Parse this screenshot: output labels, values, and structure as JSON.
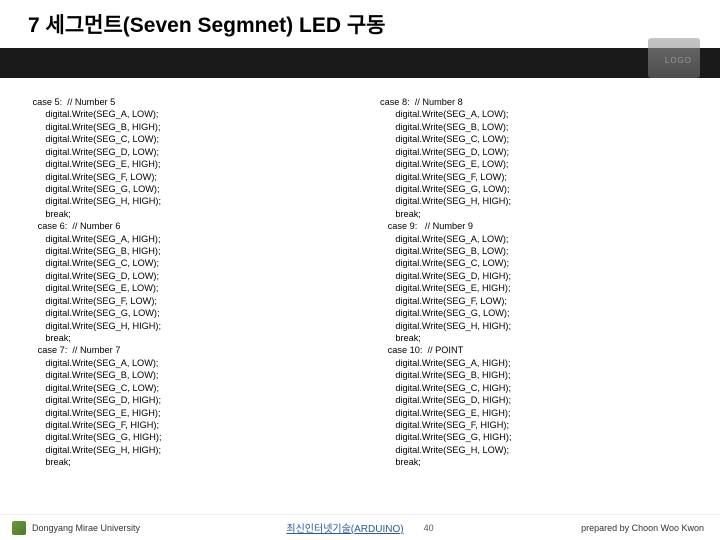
{
  "title": "7 세그먼트(Seven Segmnet) LED 구동",
  "logo_label": "LOGO",
  "code_left": " case 5:  // Number 5\n      digital.Write(SEG_A, LOW);\n      digital.Write(SEG_B, HIGH);\n      digital.Write(SEG_C, LOW);\n      digital.Write(SEG_D, LOW);\n      digital.Write(SEG_E, HIGH);\n      digital.Write(SEG_F, LOW);\n      digital.Write(SEG_G, LOW);\n      digital.Write(SEG_H, HIGH);\n      break;\n   case 6:  // Number 6\n      digital.Write(SEG_A, HIGH);\n      digital.Write(SEG_B, HIGH);\n      digital.Write(SEG_C, LOW);\n      digital.Write(SEG_D, LOW);\n      digital.Write(SEG_E, LOW);\n      digital.Write(SEG_F, LOW);\n      digital.Write(SEG_G, LOW);\n      digital.Write(SEG_H, HIGH);\n      break;\n   case 7:  // Number 7\n      digital.Write(SEG_A, LOW);\n      digital.Write(SEG_B, LOW);\n      digital.Write(SEG_C, LOW);\n      digital.Write(SEG_D, HIGH);\n      digital.Write(SEG_E, HIGH);\n      digital.Write(SEG_F, HIGH);\n      digital.Write(SEG_G, HIGH);\n      digital.Write(SEG_H, HIGH);\n      break;",
  "code_right": "case 8:  // Number 8\n      digital.Write(SEG_A, LOW);\n      digital.Write(SEG_B, LOW);\n      digital.Write(SEG_C, LOW);\n      digital.Write(SEG_D, LOW);\n      digital.Write(SEG_E, LOW);\n      digital.Write(SEG_F, LOW);\n      digital.Write(SEG_G, LOW);\n      digital.Write(SEG_H, HIGH);\n      break;\n   case 9:   // Number 9\n      digital.Write(SEG_A, LOW);\n      digital.Write(SEG_B, LOW);\n      digital.Write(SEG_C, LOW);\n      digital.Write(SEG_D, HIGH);\n      digital.Write(SEG_E, HIGH);\n      digital.Write(SEG_F, LOW);\n      digital.Write(SEG_G, LOW);\n      digital.Write(SEG_H, HIGH);\n      break;\n   case 10:  // POINT\n      digital.Write(SEG_A, HIGH);\n      digital.Write(SEG_B, HIGH);\n      digital.Write(SEG_C, HIGH);\n      digital.Write(SEG_D, HIGH);\n      digital.Write(SEG_E, HIGH);\n      digital.Write(SEG_F, HIGH);\n      digital.Write(SEG_G, HIGH);\n      digital.Write(SEG_H, LOW);\n      break;",
  "footer": {
    "university": "Dongyang Mirae University",
    "center_title": "최신인터넷기술(ARDUINO)",
    "page": "40",
    "author": "prepared by Choon Woo Kwon"
  },
  "colors": {
    "title_color": "#000000",
    "strip_bg": "#1a1a1a",
    "link_color": "#2a5a9a",
    "icon_gradient_start": "#6a9a3a",
    "icon_gradient_end": "#4a7a2a"
  }
}
